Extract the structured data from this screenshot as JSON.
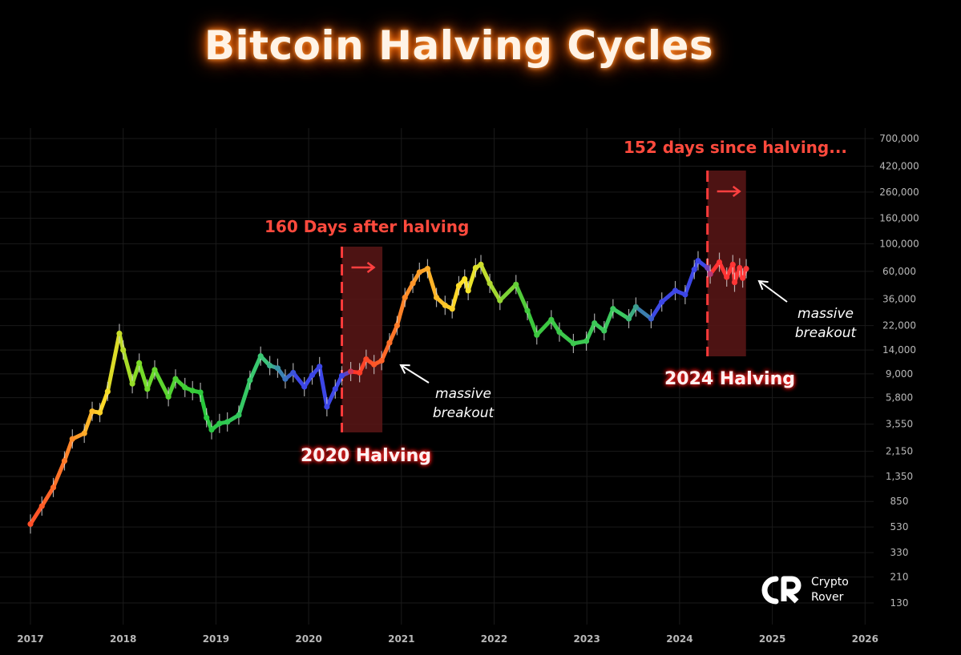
{
  "title": "Bitcoin Halving Cycles",
  "brand": {
    "name": "Crypto Rover"
  },
  "colors": {
    "background": "#000000",
    "highlight_fill": "#5a1616",
    "halving_line": "#ff3a3a",
    "annotation_red": "#ff4a3d",
    "title_glow": "#ff7a1a"
  },
  "chart_data": {
    "type": "line",
    "scale": "log",
    "x_tick_labels": [
      "2017",
      "2018",
      "2019",
      "2020",
      "2021",
      "2022",
      "2023",
      "2024",
      "2025",
      "2026"
    ],
    "y_tick_values": [
      130,
      210,
      330,
      530,
      850,
      1350,
      2150,
      3550,
      5800,
      9000,
      14000,
      22000,
      36000,
      60000,
      100000,
      160000,
      260000,
      420000,
      700000
    ],
    "y_tick_labels": [
      "130",
      "210",
      "330",
      "530",
      "850",
      "1,350",
      "2,150",
      "3,550",
      "5,800",
      "9,000",
      "14,000",
      "22,000",
      "36,000",
      "60,000",
      "100,000",
      "160,000",
      "260,000",
      "420,000",
      "700,000"
    ],
    "series": [
      {
        "points": [
          [
            "2017-01-01",
            560
          ],
          [
            "2017-02-15",
            780
          ],
          [
            "2017-04-01",
            1100
          ],
          [
            "2017-05-15",
            1800
          ],
          [
            "2017-06-15",
            2700
          ],
          [
            "2017-08-01",
            3000
          ],
          [
            "2017-09-01",
            4500
          ],
          [
            "2017-10-01",
            4400
          ],
          [
            "2017-11-01",
            6500
          ],
          [
            "2017-12-17",
            19000
          ],
          [
            "2018-01-01",
            14000
          ],
          [
            "2018-02-06",
            7500
          ],
          [
            "2018-03-05",
            11000
          ],
          [
            "2018-04-06",
            6800
          ],
          [
            "2018-05-05",
            9700
          ],
          [
            "2018-06-28",
            5900
          ],
          [
            "2018-07-26",
            8200
          ],
          [
            "2018-09-01",
            7000
          ],
          [
            "2018-10-01",
            6600
          ],
          [
            "2018-11-01",
            6400
          ],
          [
            "2018-11-25",
            4000
          ],
          [
            "2018-12-15",
            3200
          ],
          [
            "2019-01-15",
            3600
          ],
          [
            "2019-02-15",
            3700
          ],
          [
            "2019-04-01",
            4200
          ],
          [
            "2019-05-15",
            8000
          ],
          [
            "2019-06-26",
            12500
          ],
          [
            "2019-08-01",
            10500
          ],
          [
            "2019-09-01",
            10000
          ],
          [
            "2019-10-01",
            8200
          ],
          [
            "2019-11-01",
            9200
          ],
          [
            "2019-12-15",
            7100
          ],
          [
            "2020-01-15",
            8800
          ],
          [
            "2020-02-13",
            10300
          ],
          [
            "2020-03-13",
            4900
          ],
          [
            "2020-04-15",
            6800
          ],
          [
            "2020-05-11",
            8700
          ],
          [
            "2020-06-15",
            9400
          ],
          [
            "2020-07-20",
            9200
          ],
          [
            "2020-08-15",
            11800
          ],
          [
            "2020-09-15",
            10700
          ],
          [
            "2020-10-15",
            11500
          ],
          [
            "2020-11-15",
            16000
          ],
          [
            "2020-12-15",
            22000
          ],
          [
            "2021-01-15",
            37000
          ],
          [
            "2021-02-15",
            48000
          ],
          [
            "2021-03-13",
            59000
          ],
          [
            "2021-04-14",
            63000
          ],
          [
            "2021-05-19",
            37000
          ],
          [
            "2021-06-22",
            32000
          ],
          [
            "2021-07-20",
            30000
          ],
          [
            "2021-08-15",
            46000
          ],
          [
            "2021-09-07",
            52000
          ],
          [
            "2021-09-21",
            42000
          ],
          [
            "2021-10-20",
            64000
          ],
          [
            "2021-11-10",
            68000
          ],
          [
            "2021-12-15",
            48000
          ],
          [
            "2022-01-24",
            35000
          ],
          [
            "2022-03-28",
            47000
          ],
          [
            "2022-05-12",
            29000
          ],
          [
            "2022-06-18",
            18500
          ],
          [
            "2022-08-14",
            24500
          ],
          [
            "2022-09-15",
            19500
          ],
          [
            "2022-11-09",
            15800
          ],
          [
            "2022-12-30",
            16500
          ],
          [
            "2023-01-31",
            23000
          ],
          [
            "2023-03-10",
            20000
          ],
          [
            "2023-04-14",
            30000
          ],
          [
            "2023-06-15",
            25000
          ],
          [
            "2023-07-13",
            31000
          ],
          [
            "2023-09-11",
            25000
          ],
          [
            "2023-10-23",
            34000
          ],
          [
            "2023-12-15",
            42000
          ],
          [
            "2024-01-23",
            39000
          ],
          [
            "2024-02-28",
            62000
          ],
          [
            "2024-03-14",
            73000
          ],
          [
            "2024-04-20",
            64000
          ],
          [
            "2024-05-01",
            57000
          ],
          [
            "2024-06-06",
            71000
          ],
          [
            "2024-07-05",
            54000
          ],
          [
            "2024-07-29",
            68000
          ],
          [
            "2024-08-05",
            49000
          ],
          [
            "2024-08-25",
            64000
          ],
          [
            "2024-09-06",
            53000
          ],
          [
            "2024-09-20",
            63000
          ]
        ]
      }
    ],
    "halvings": [
      {
        "date": "2020-05-11",
        "label": "2020 Halving",
        "window_days": 160,
        "note": "160 Days after halving"
      },
      {
        "date": "2024-04-20",
        "label": "2024 Halving",
        "window_days": 152,
        "note": "152 days since halving..."
      }
    ],
    "annotations": [
      {
        "text": "massive breakout",
        "near": "2020-11-15"
      },
      {
        "text": "massive breakout",
        "near": "2024-09-20"
      }
    ]
  }
}
